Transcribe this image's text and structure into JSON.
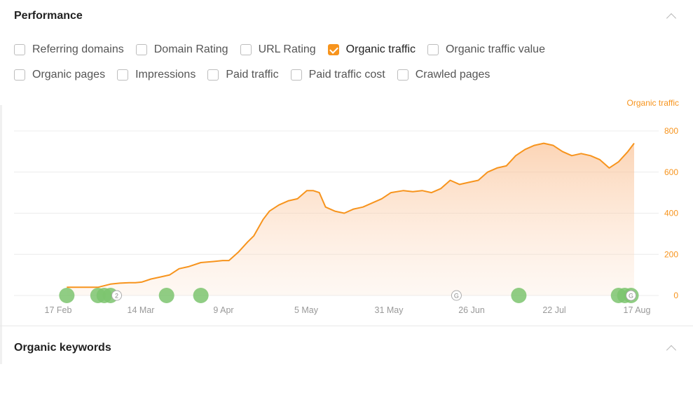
{
  "performance": {
    "title": "Performance",
    "checkboxes_row1": [
      {
        "label": "Referring domains",
        "checked": false
      },
      {
        "label": "Domain Rating",
        "checked": false
      },
      {
        "label": "URL Rating",
        "checked": false
      },
      {
        "label": "Organic traffic",
        "checked": true
      },
      {
        "label": "Organic traffic value",
        "checked": false
      }
    ],
    "checkboxes_row2": [
      {
        "label": "Organic pages",
        "checked": false
      },
      {
        "label": "Impressions",
        "checked": false
      },
      {
        "label": "Paid traffic",
        "checked": false
      },
      {
        "label": "Paid traffic cost",
        "checked": false
      },
      {
        "label": "Crawled pages",
        "checked": false
      }
    ],
    "series_label": "Organic traffic"
  },
  "organic_keywords": {
    "title": "Organic keywords"
  },
  "colors": {
    "accent": "#f7941d",
    "marker": "#7dc46e",
    "grid": "#ececec"
  },
  "chart_data": {
    "type": "area",
    "series": [
      {
        "name": "Organic traffic",
        "x": [
          "2023-02-17",
          "2023-02-22",
          "2023-02-24",
          "2023-02-27",
          "2023-03-03",
          "2023-03-06",
          "2023-03-09",
          "2023-03-11",
          "2023-03-13",
          "2023-03-16",
          "2023-03-19",
          "2023-03-22",
          "2023-03-25",
          "2023-03-28",
          "2023-04-01",
          "2023-04-05",
          "2023-04-08",
          "2023-04-10",
          "2023-04-13",
          "2023-04-16",
          "2023-04-18",
          "2023-04-21",
          "2023-04-23",
          "2023-04-26",
          "2023-04-29",
          "2023-05-02",
          "2023-05-05",
          "2023-05-07",
          "2023-05-09",
          "2023-05-11",
          "2023-05-14",
          "2023-05-17",
          "2023-05-20",
          "2023-05-23",
          "2023-05-26",
          "2023-05-29",
          "2023-06-01",
          "2023-06-05",
          "2023-06-08",
          "2023-06-11",
          "2023-06-14",
          "2023-06-17",
          "2023-06-20",
          "2023-06-23",
          "2023-06-26",
          "2023-06-29",
          "2023-07-02",
          "2023-07-05",
          "2023-07-08",
          "2023-07-11",
          "2023-07-14",
          "2023-07-17",
          "2023-07-20",
          "2023-07-23",
          "2023-07-26",
          "2023-07-29",
          "2023-08-01",
          "2023-08-04",
          "2023-08-07",
          "2023-08-10",
          "2023-08-13",
          "2023-08-16",
          "2023-08-18"
        ],
        "values": [
          40,
          40,
          40,
          40,
          55,
          60,
          62,
          62,
          65,
          80,
          90,
          100,
          130,
          140,
          160,
          165,
          170,
          170,
          210,
          260,
          290,
          370,
          410,
          440,
          460,
          470,
          510,
          510,
          500,
          430,
          410,
          400,
          420,
          430,
          450,
          470,
          500,
          510,
          505,
          510,
          500,
          520,
          560,
          540,
          550,
          560,
          600,
          620,
          630,
          680,
          710,
          730,
          740,
          730,
          700,
          680,
          690,
          680,
          660,
          620,
          650,
          700,
          740
        ]
      }
    ],
    "x_ticks": [
      "17 Feb",
      "14 Mar",
      "9 Apr",
      "5 May",
      "31 May",
      "26 Jun",
      "22 Jul",
      "17 Aug"
    ],
    "y_ticks": [
      "800",
      "600",
      "400",
      "200",
      "0"
    ],
    "ylim": [
      0,
      800
    ],
    "grid": true,
    "annotations": [
      {
        "type": "marker",
        "date": "2023-02-17"
      },
      {
        "type": "marker",
        "date": "2023-02-27"
      },
      {
        "type": "marker",
        "date": "2023-03-01"
      },
      {
        "type": "marker",
        "date": "2023-03-03"
      },
      {
        "type": "badge",
        "date": "2023-03-05",
        "text": "2"
      },
      {
        "type": "marker",
        "date": "2023-03-21"
      },
      {
        "type": "marker",
        "date": "2023-04-01"
      },
      {
        "type": "badge",
        "date": "2023-06-22",
        "text": "G"
      },
      {
        "type": "marker",
        "date": "2023-07-12"
      },
      {
        "type": "marker",
        "date": "2023-08-13"
      },
      {
        "type": "marker",
        "date": "2023-08-15"
      },
      {
        "type": "marker",
        "date": "2023-08-17"
      },
      {
        "type": "badge",
        "date": "2023-08-17",
        "text": "G"
      }
    ]
  }
}
